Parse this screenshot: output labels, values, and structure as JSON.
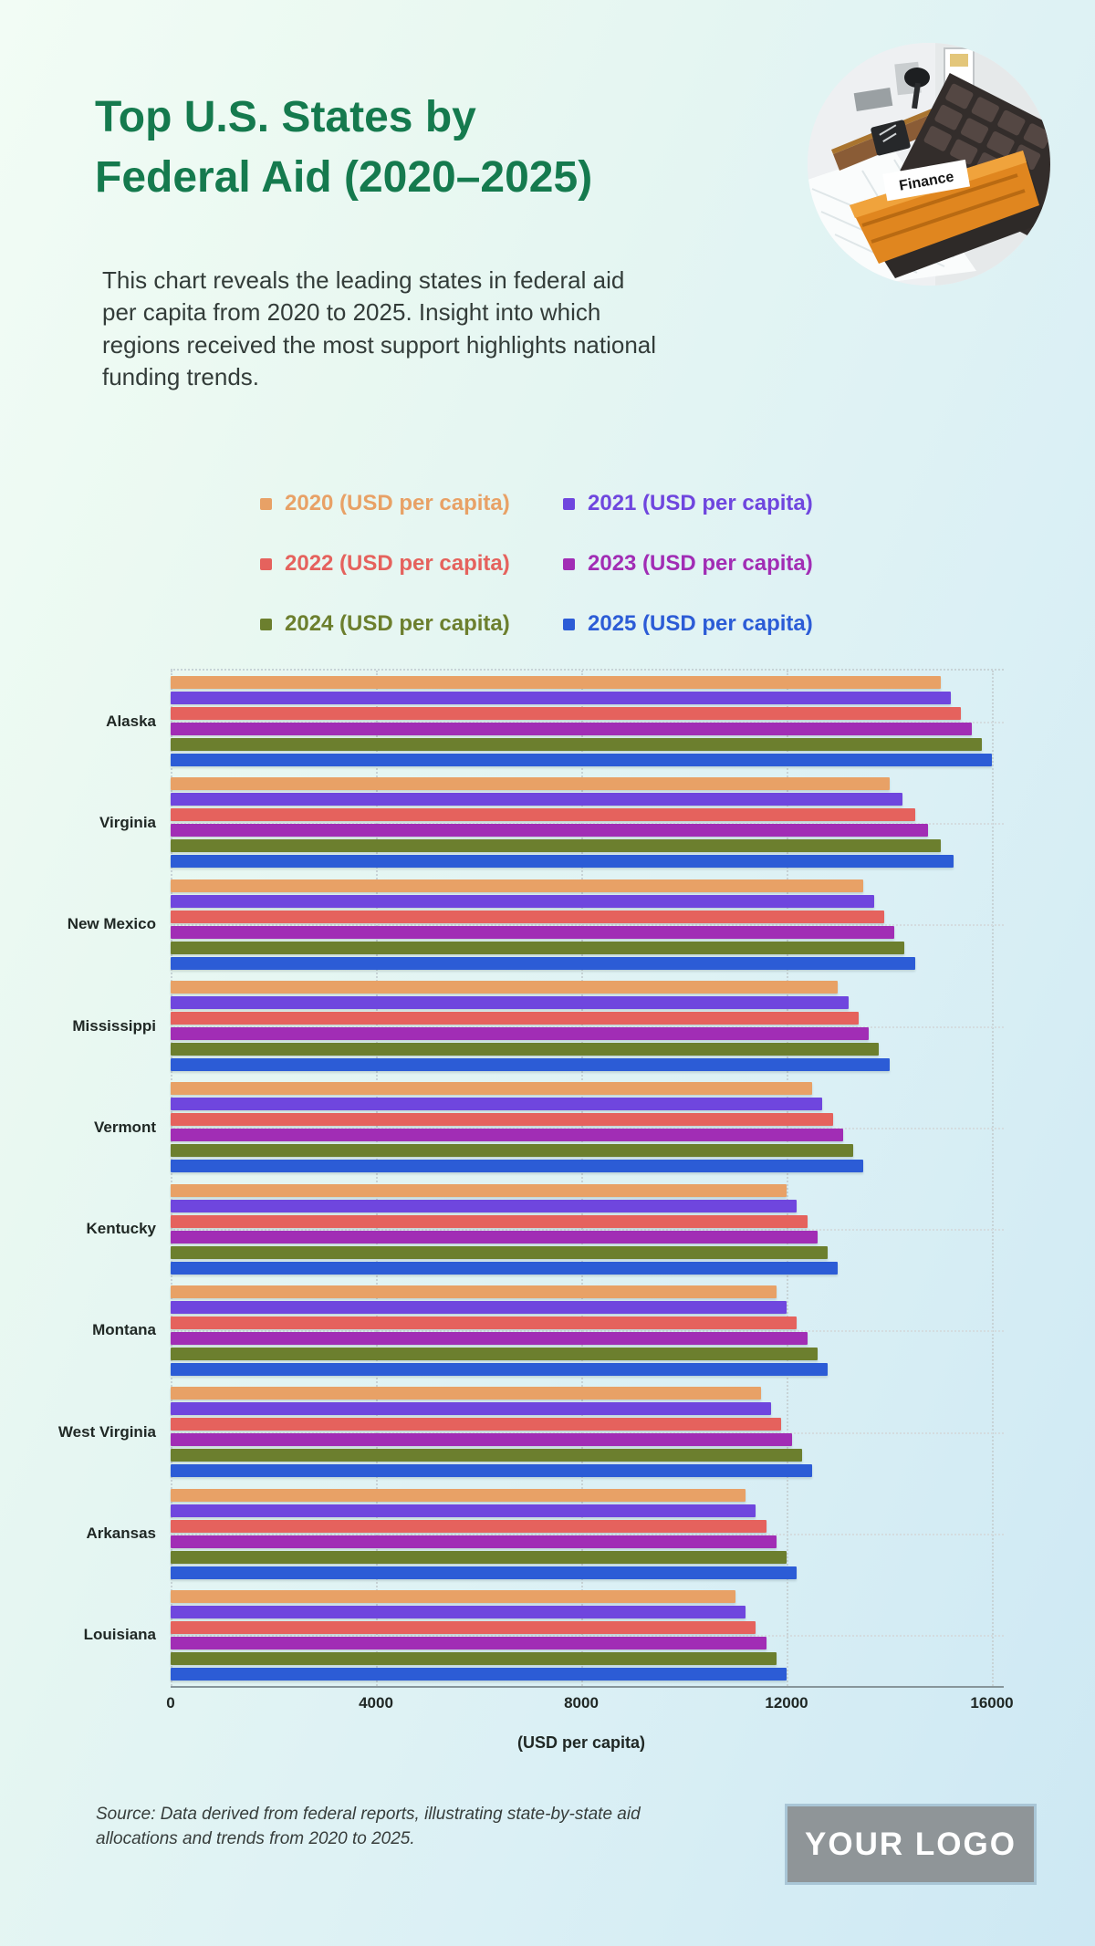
{
  "page": {
    "title_line1": "Top U.S. States by",
    "title_line2": "Federal Aid (2020–2025)",
    "subtitle": "This chart reveals the leading states in federal aid per capita from 2020 to 2025. Insight into which regions received the most support highlights national funding trends.",
    "source_note": "Source: Data derived from federal reports, illustrating state-by-state aid allocations and trends from 2020 to 2025.",
    "logo_text": "YOUR LOGO",
    "photo_label": "Finance"
  },
  "colors": {
    "title_green": "#157a4e",
    "text_dark": "#202825",
    "grid_dotted": "#c7d3d6",
    "axis_line": "#87969b",
    "logo_bg": "#8f9598",
    "logo_border": "#a9c6d6",
    "background_left": "#f2fcf5",
    "background_right": "#cde8f3"
  },
  "chart_data": {
    "type": "bar",
    "orientation": "horizontal",
    "title": "Top U.S. States by Federal Aid (2020–2025)",
    "xlabel": "(USD per capita)",
    "ylabel": "",
    "xlim": [
      0,
      16000
    ],
    "x_ticks": [
      0,
      4000,
      8000,
      12000,
      16000
    ],
    "grid": "dotted",
    "legend_position": "top",
    "categories": [
      "Alaska",
      "Virginia",
      "New Mexico",
      "Mississippi",
      "Vermont",
      "Kentucky",
      "Montana",
      "West Virginia",
      "Arkansas",
      "Louisiana"
    ],
    "series": [
      {
        "name": "2020 (USD per capita)",
        "color": "#E8A166",
        "values": [
          15000,
          14000,
          13500,
          13000,
          12500,
          12000,
          11800,
          11500,
          11200,
          11000
        ]
      },
      {
        "name": "2021 (USD per capita)",
        "color": "#6F46DE",
        "values": [
          15200,
          14250,
          13700,
          13200,
          12700,
          12200,
          12000,
          11700,
          11400,
          11200
        ]
      },
      {
        "name": "2022 (USD per capita)",
        "color": "#E5625D",
        "values": [
          15400,
          14500,
          13900,
          13400,
          12900,
          12400,
          12200,
          11900,
          11600,
          11400
        ]
      },
      {
        "name": "2023 (USD per capita)",
        "color": "#A12DB5",
        "values": [
          15600,
          14750,
          14100,
          13600,
          13100,
          12600,
          12400,
          12100,
          11800,
          11600
        ]
      },
      {
        "name": "2024 (USD per capita)",
        "color": "#6C7F2E",
        "values": [
          15800,
          15000,
          14300,
          13800,
          13300,
          12800,
          12600,
          12300,
          12000,
          11800
        ]
      },
      {
        "name": "2025 (USD per capita)",
        "color": "#2C5CD6",
        "values": [
          16000,
          15250,
          14500,
          14000,
          13500,
          13000,
          12800,
          12500,
          12200,
          12000
        ]
      }
    ]
  }
}
